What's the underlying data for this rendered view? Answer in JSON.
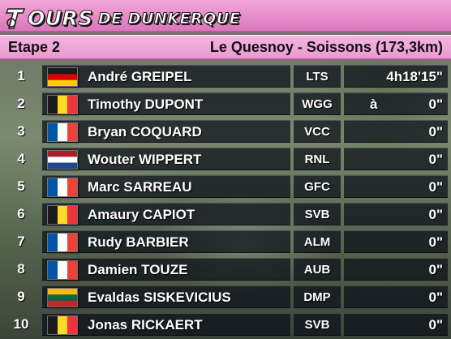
{
  "header": {
    "title_main": "OURS",
    "title_sub": "DE DUNKERQUE",
    "logo_icon": "tour-t-logo-icon"
  },
  "stage": {
    "label": "Etape 2",
    "route": "Le Quesnoy - Soissons (173,3km)"
  },
  "colors": {
    "header_pink": "#e58cc8",
    "row_bg": "#0a0e18"
  },
  "results": [
    {
      "rank": "1",
      "flag": "germany-flag-icon",
      "rider": "André GREIPEL",
      "team": "LTS",
      "time_prefix": "",
      "time": "4h18'15\""
    },
    {
      "rank": "2",
      "flag": "belgium-flag-icon",
      "rider": "Timothy DUPONT",
      "team": "WGG",
      "time_prefix": "à",
      "time": "0\""
    },
    {
      "rank": "3",
      "flag": "france-flag-icon",
      "rider": "Bryan COQUARD",
      "team": "VCC",
      "time_prefix": "",
      "time": "0\""
    },
    {
      "rank": "4",
      "flag": "netherlands-flag-icon",
      "rider": "Wouter WIPPERT",
      "team": "RNL",
      "time_prefix": "",
      "time": "0\""
    },
    {
      "rank": "5",
      "flag": "france-flag-icon",
      "rider": "Marc SARREAU",
      "team": "GFC",
      "time_prefix": "",
      "time": "0\""
    },
    {
      "rank": "6",
      "flag": "belgium-flag-icon",
      "rider": "Amaury CAPIOT",
      "team": "SVB",
      "time_prefix": "",
      "time": "0\""
    },
    {
      "rank": "7",
      "flag": "france-flag-icon",
      "rider": "Rudy BARBIER",
      "team": "ALM",
      "time_prefix": "",
      "time": "0\""
    },
    {
      "rank": "8",
      "flag": "france-flag-icon",
      "rider": "Damien TOUZE",
      "team": "AUB",
      "time_prefix": "",
      "time": "0\""
    },
    {
      "rank": "9",
      "flag": "lithuania-flag-icon",
      "rider": "Evaldas SISKEVICIUS",
      "team": "DMP",
      "time_prefix": "",
      "time": "0\""
    },
    {
      "rank": "10",
      "flag": "belgium-flag-icon",
      "rider": "Jonas RICKAERT",
      "team": "SVB",
      "time_prefix": "",
      "time": "0\""
    }
  ]
}
